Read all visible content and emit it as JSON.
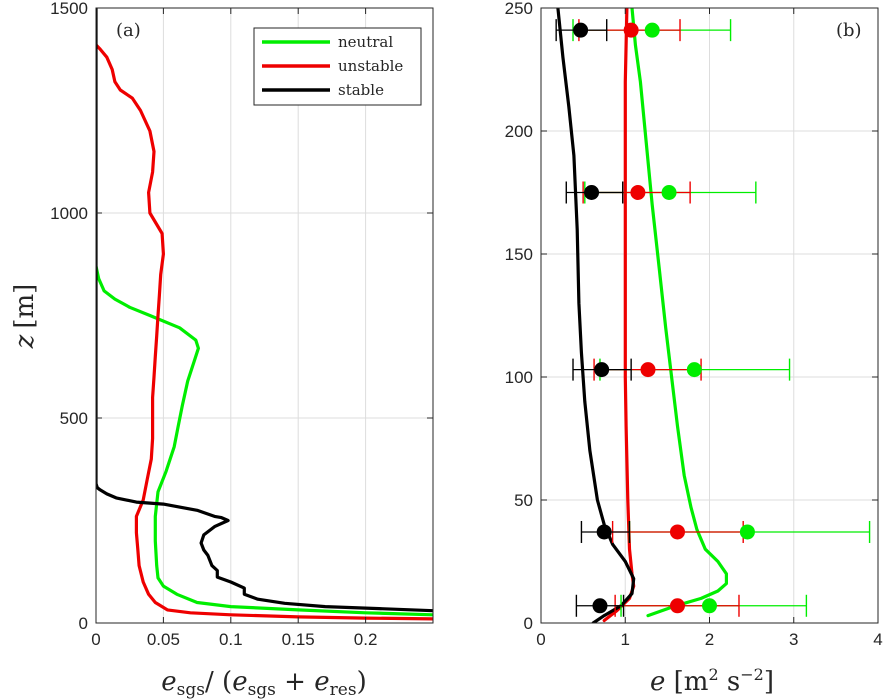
{
  "chart_data": [
    {
      "type": "line",
      "panel_label": "(a)",
      "xlabel": "e_sgs/ (e_sgs + e_res)",
      "ylabel": "z [m]",
      "xlim": [
        0,
        0.25
      ],
      "ylim": [
        0,
        1500
      ],
      "xticks": [
        0,
        0.05,
        0.1,
        0.15,
        0.2
      ],
      "xticklabels": [
        "0",
        "0.05",
        "0.1",
        "0.15",
        "0.2"
      ],
      "yticks": [
        0,
        500,
        1000,
        1500
      ],
      "yticklabels": [
        "0",
        "500",
        "1000",
        "1500"
      ],
      "grid": true,
      "legend_position": "top-right",
      "series": [
        {
          "name": "neutral",
          "color": "#00ee00",
          "points": [
            [
              0.25,
              20
            ],
            [
              0.2,
              25
            ],
            [
              0.15,
              32
            ],
            [
              0.1,
              40
            ],
            [
              0.075,
              50
            ],
            [
              0.06,
              70
            ],
            [
              0.05,
              90
            ],
            [
              0.046,
              110
            ],
            [
              0.045,
              140
            ],
            [
              0.044,
              200
            ],
            [
              0.044,
              260
            ],
            [
              0.046,
              320
            ],
            [
              0.052,
              370
            ],
            [
              0.058,
              430
            ],
            [
              0.061,
              480
            ],
            [
              0.064,
              530
            ],
            [
              0.068,
              590
            ],
            [
              0.073,
              640
            ],
            [
              0.076,
              670
            ],
            [
              0.074,
              690
            ],
            [
              0.062,
              720
            ],
            [
              0.04,
              750
            ],
            [
              0.025,
              770
            ],
            [
              0.014,
              790
            ],
            [
              0.006,
              810
            ],
            [
              0.002,
              840
            ],
            [
              0,
              870
            ]
          ]
        },
        {
          "name": "unstable",
          "color": "#ee0000",
          "points": [
            [
              0.25,
              10
            ],
            [
              0.2,
              12
            ],
            [
              0.15,
              15
            ],
            [
              0.1,
              20
            ],
            [
              0.07,
              25
            ],
            [
              0.053,
              32
            ],
            [
              0.044,
              50
            ],
            [
              0.039,
              70
            ],
            [
              0.035,
              100
            ],
            [
              0.032,
              140
            ],
            [
              0.031,
              180
            ],
            [
              0.03,
              220
            ],
            [
              0.03,
              260
            ],
            [
              0.035,
              300
            ],
            [
              0.038,
              350
            ],
            [
              0.041,
              400
            ],
            [
              0.042,
              450
            ],
            [
              0.042,
              500
            ],
            [
              0.042,
              550
            ],
            [
              0.043,
              600
            ],
            [
              0.044,
              650
            ],
            [
              0.045,
              700
            ],
            [
              0.046,
              750
            ],
            [
              0.047,
              800
            ],
            [
              0.048,
              850
            ],
            [
              0.05,
              900
            ],
            [
              0.049,
              950
            ],
            [
              0.04,
              1000
            ],
            [
              0.039,
              1050
            ],
            [
              0.042,
              1100
            ],
            [
              0.043,
              1150
            ],
            [
              0.04,
              1200
            ],
            [
              0.033,
              1250
            ],
            [
              0.027,
              1280
            ],
            [
              0.018,
              1300
            ],
            [
              0.014,
              1320
            ],
            [
              0.012,
              1350
            ],
            [
              0.008,
              1380
            ],
            [
              0.003,
              1400
            ],
            [
              0,
              1410
            ]
          ]
        },
        {
          "name": "stable",
          "color": "#000000",
          "points": [
            [
              0.25,
              30
            ],
            [
              0.21,
              35
            ],
            [
              0.17,
              40
            ],
            [
              0.14,
              48
            ],
            [
              0.12,
              58
            ],
            [
              0.11,
              70
            ],
            [
              0.11,
              85
            ],
            [
              0.1,
              100
            ],
            [
              0.09,
              112
            ],
            [
              0.09,
              128
            ],
            [
              0.086,
              140
            ],
            [
              0.083,
              165
            ],
            [
              0.08,
              178
            ],
            [
              0.078,
              195
            ],
            [
              0.08,
              215
            ],
            [
              0.088,
              235
            ],
            [
              0.098,
              250
            ],
            [
              0.093,
              257
            ],
            [
              0.088,
              260
            ],
            [
              0.075,
              275
            ],
            [
              0.05,
              290
            ],
            [
              0.03,
              295
            ],
            [
              0.015,
              305
            ],
            [
              0.008,
              315
            ],
            [
              0.003,
              325
            ],
            [
              0.001,
              330
            ],
            [
              0,
              340
            ],
            [
              0,
              400
            ],
            [
              0,
              600
            ],
            [
              0,
              800
            ],
            [
              0,
              1000
            ],
            [
              0,
              1200
            ],
            [
              0,
              1400
            ],
            [
              0,
              1500
            ]
          ]
        }
      ]
    },
    {
      "type": "line",
      "panel_label": "(b)",
      "xlabel": "e [m² s⁻²]",
      "xlim": [
        0,
        4
      ],
      "ylim": [
        0,
        250
      ],
      "xticks": [
        0,
        1,
        2,
        3,
        4
      ],
      "xticklabels": [
        "0",
        "1",
        "2",
        "3",
        "4"
      ],
      "yticks": [
        0,
        50,
        100,
        150,
        200,
        250
      ],
      "yticklabels": [
        "0",
        "50",
        "100",
        "150",
        "200",
        "250"
      ],
      "grid": true,
      "series": [
        {
          "name": "neutral",
          "color": "#00ee00",
          "points": [
            [
              1.27,
              3
            ],
            [
              1.6,
              7
            ],
            [
              1.9,
              10
            ],
            [
              2.1,
              13
            ],
            [
              2.2,
              16
            ],
            [
              2.2,
              20
            ],
            [
              2.1,
              25
            ],
            [
              1.95,
              30
            ],
            [
              1.85,
              38
            ],
            [
              1.78,
              47
            ],
            [
              1.7,
              60
            ],
            [
              1.62,
              80
            ],
            [
              1.55,
              100
            ],
            [
              1.48,
              120
            ],
            [
              1.4,
              145
            ],
            [
              1.32,
              170
            ],
            [
              1.25,
              195
            ],
            [
              1.18,
              220
            ],
            [
              1.12,
              235
            ],
            [
              1.08,
              250
            ]
          ],
          "markers": [
            {
              "z": 7,
              "e": 2.0,
              "lo": 0.95,
              "hi": 3.15
            },
            {
              "z": 37,
              "e": 2.45,
              "lo": 1.05,
              "hi": 3.9
            },
            {
              "z": 103,
              "e": 1.82,
              "lo": 0.7,
              "hi": 2.95
            },
            {
              "z": 175,
              "e": 1.52,
              "lo": 0.52,
              "hi": 2.55
            },
            {
              "z": 241,
              "e": 1.32,
              "lo": 0.38,
              "hi": 2.25
            }
          ]
        },
        {
          "name": "unstable",
          "color": "#ee0000",
          "points": [
            [
              0.75,
              1
            ],
            [
              0.9,
              5
            ],
            [
              1.05,
              10
            ],
            [
              1.1,
              15
            ],
            [
              1.08,
              20
            ],
            [
              1.05,
              30
            ],
            [
              1.03,
              50
            ],
            [
              1.01,
              80
            ],
            [
              1.0,
              100
            ],
            [
              1.0,
              130
            ],
            [
              1.0,
              160
            ],
            [
              1.0,
              190
            ],
            [
              1.0,
              220
            ],
            [
              1.02,
              250
            ]
          ],
          "markers": [
            {
              "z": 7,
              "e": 1.62,
              "lo": 0.88,
              "hi": 2.35
            },
            {
              "z": 37,
              "e": 1.62,
              "lo": 0.85,
              "hi": 2.4
            },
            {
              "z": 103,
              "e": 1.27,
              "lo": 0.63,
              "hi": 1.9
            },
            {
              "z": 175,
              "e": 1.15,
              "lo": 0.5,
              "hi": 1.77
            },
            {
              "z": 241,
              "e": 1.07,
              "lo": 0.45,
              "hi": 1.65
            }
          ]
        },
        {
          "name": "stable",
          "color": "#000000",
          "points": [
            [
              0.62,
              0
            ],
            [
              0.75,
              3
            ],
            [
              0.95,
              7
            ],
            [
              1.08,
              12
            ],
            [
              1.1,
              18
            ],
            [
              1.0,
              25
            ],
            [
              0.85,
              32
            ],
            [
              0.75,
              40
            ],
            [
              0.67,
              50
            ],
            [
              0.58,
              70
            ],
            [
              0.52,
              90
            ],
            [
              0.48,
              110
            ],
            [
              0.45,
              130
            ],
            [
              0.43,
              160
            ],
            [
              0.39,
              190
            ],
            [
              0.33,
              210
            ],
            [
              0.26,
              230
            ],
            [
              0.2,
              250
            ]
          ],
          "markers": [
            {
              "z": 7,
              "e": 0.7,
              "lo": 0.42,
              "hi": 0.98
            },
            {
              "z": 37,
              "e": 0.75,
              "lo": 0.48,
              "hi": 1.05
            },
            {
              "z": 103,
              "e": 0.72,
              "lo": 0.38,
              "hi": 1.07
            },
            {
              "z": 175,
              "e": 0.6,
              "lo": 0.3,
              "hi": 0.97
            },
            {
              "z": 241,
              "e": 0.47,
              "lo": 0.18,
              "hi": 0.78
            }
          ]
        }
      ]
    }
  ],
  "legend": {
    "items": [
      {
        "label": "neutral",
        "color": "#00ee00"
      },
      {
        "label": "unstable",
        "color": "#ee0000"
      },
      {
        "label": "stable",
        "color": "#000000"
      }
    ]
  },
  "labels": {
    "panel_a": "(a)",
    "panel_b": "(b)",
    "ylabel_a_var": "z",
    "ylabel_a_unit": "[m]",
    "xlabel_a_1": "e",
    "xlabel_a_sub1": "sgs",
    "xlabel_a_2": "/ (",
    "xlabel_a_3": "e",
    "xlabel_a_sub2": "sgs",
    "xlabel_a_4": " + ",
    "xlabel_a_5": "e",
    "xlabel_a_sub3": "res",
    "xlabel_a_6": ")",
    "xlabel_b_var": "e",
    "xlabel_b_unit": " [m",
    "xlabel_b_sup1": "2",
    "xlabel_b_mid": " s",
    "xlabel_b_sup2": "−2",
    "xlabel_b_end": "]"
  }
}
